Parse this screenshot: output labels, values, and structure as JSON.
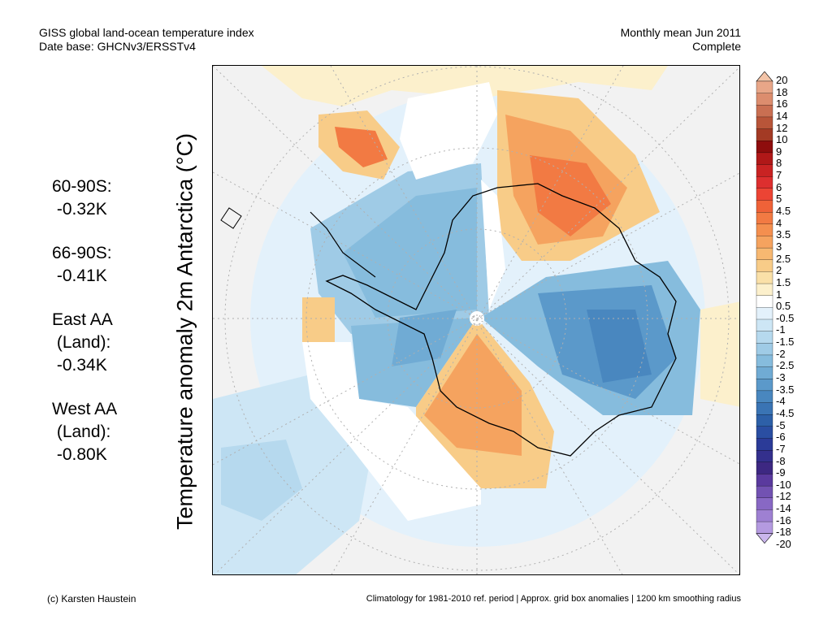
{
  "header": {
    "title_line1": "GISS global land-ocean temperature index",
    "title_line2": "Date base: GHCNv3/ERSSTv4",
    "period_line1": "Monthly mean Jun 2011",
    "period_line2": "Complete"
  },
  "axis": {
    "ylabel": "Temperature anomaly 2m Antarctica (°C)"
  },
  "stats": [
    {
      "lines": [
        "60-90S:",
        " -0.32K"
      ]
    },
    {
      "lines": [
        "66-90S:",
        " -0.41K"
      ]
    },
    {
      "lines": [
        "East AA",
        " (Land):",
        " -0.34K"
      ]
    },
    {
      "lines": [
        "West AA",
        " (Land):",
        " -0.80K"
      ]
    }
  ],
  "colorbar": {
    "labels": [
      "20",
      "18",
      "16",
      "14",
      "12",
      "10",
      "9",
      "8",
      "7",
      "6",
      "5",
      "4.5",
      "4",
      "3.5",
      "3",
      "2.5",
      "2",
      "1.5",
      "1",
      "0.5",
      "-0.5",
      "-1",
      "-1.5",
      "-2",
      "-2.5",
      "-3",
      "-3.5",
      "-4",
      "-4.5",
      "-5",
      "-6",
      "-7",
      "-8",
      "-9",
      "-10",
      "-12",
      "-14",
      "-16",
      "-18",
      "-20"
    ],
    "colors": [
      "#f3c4a8",
      "#e8a688",
      "#dc8d6e",
      "#c96f52",
      "#b85539",
      "#a33a24",
      "#8e0d0d",
      "#b01818",
      "#c92323",
      "#dd2f2f",
      "#ec4434",
      "#ef6238",
      "#f27a43",
      "#f48f4f",
      "#f5a35f",
      "#f7b871",
      "#f8cc88",
      "#fae0a8",
      "#fcf0cc",
      "#ffffff",
      "#e3f1fb",
      "#cde6f5",
      "#b6d9ee",
      "#9fcbe6",
      "#86bcdd",
      "#70abd4",
      "#5b99ca",
      "#4987bf",
      "#3a74b4",
      "#2d60a8",
      "#2a4ea2",
      "#2b3b98",
      "#34308d",
      "#3d2882",
      "#5a3a9e",
      "#7252b2",
      "#8868c4",
      "#9e80d2",
      "#b49ae0",
      "#cab6ec"
    ]
  },
  "footer": {
    "credit": "(c) Karsten Haustein",
    "note": "Climatology for 1981-2010 ref. period | Approx. grid box anomalies | 1200 km smoothing radius"
  },
  "map": {
    "projection": "polar stereographic, south pole",
    "land_color": "#f2f2f2",
    "grid_color": "#b0b0b0"
  }
}
